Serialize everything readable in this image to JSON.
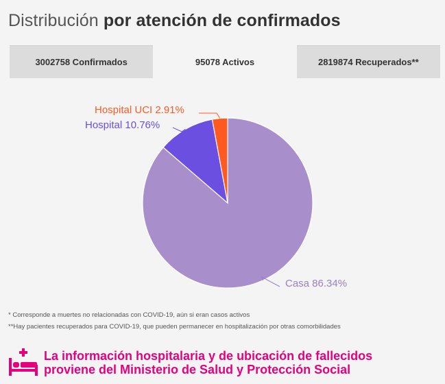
{
  "title": {
    "regular": "Distribución",
    "bold": "por atención de confirmados"
  },
  "tabs": [
    {
      "label": "3002758 Confirmados",
      "active": false
    },
    {
      "label": "95078 Activos",
      "active": true
    },
    {
      "label": "2819874 Recuperados**",
      "active": false
    }
  ],
  "chart_data": {
    "type": "pie",
    "slices": [
      {
        "label": "Casa 86.34%",
        "value": 86.34,
        "color": "#a88fcb"
      },
      {
        "label": "Hospital 10.76%",
        "value": 10.76,
        "color": "#6b4fe0"
      },
      {
        "label": "Hospital UCI 2.91%",
        "value": 2.91,
        "color": "#ff5a22"
      }
    ]
  },
  "footnotes": [
    "* Corresponde a muertes no relacionadas con COVID-19, aún si eran casos activos",
    "**Hay pacientes recuperados para COVID-19, que pueden permanecer en hospitalización por otras comorbilidades"
  ],
  "banner": {
    "line1": "La información hospitalaria y de ubicación de fallecidos",
    "line2": "proviene del Ministerio de Salud y Protección Social",
    "color": "#e6007e",
    "icon": "hospital-bed-icon"
  }
}
